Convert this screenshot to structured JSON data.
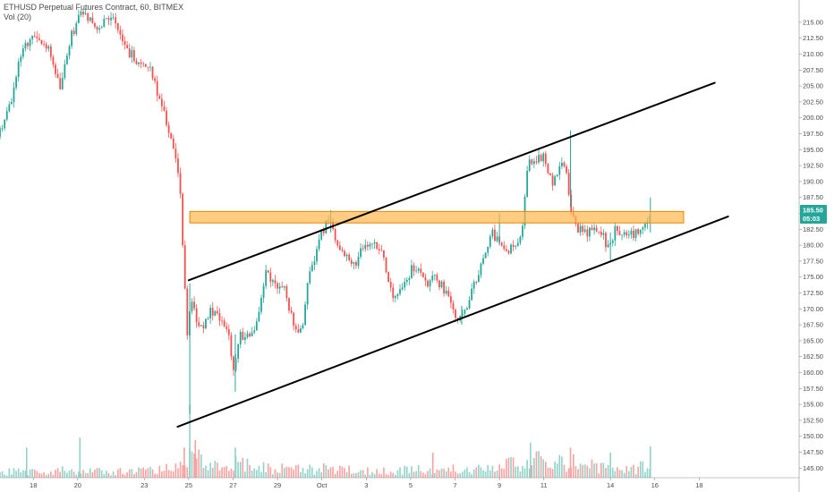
{
  "legend": {
    "title": "ETHUSD Perpetual Futures Contract, 60, BITMEX",
    "volume": "Vol (20)"
  },
  "price_tag": {
    "price": "185.50",
    "countdown": "05:03"
  },
  "colors": {
    "up": "#26a69a",
    "down": "#ef5350",
    "vol_up": "#93d2c9",
    "vol_down": "#f5a3a1",
    "zone_fill": "#ffb74d",
    "zone_stroke": "#e08a00",
    "channel": "#000000",
    "tag": "#26a69a",
    "axis": "#8a8a8a",
    "background": "#ffffff"
  },
  "chart_data": {
    "type": "candlestick",
    "title": "ETHUSD Perpetual Futures Contract, 60, BITMEX",
    "y_range": [
      143.5,
      218.5
    ],
    "y_ticks": [
      "145.00",
      "147.50",
      "150.00",
      "152.50",
      "155.00",
      "157.50",
      "160.00",
      "162.50",
      "165.00",
      "167.50",
      "170.00",
      "172.50",
      "175.00",
      "177.50",
      "180.00",
      "182.50",
      "185.00",
      "187.50",
      "190.00",
      "192.50",
      "195.00",
      "197.50",
      "200.00",
      "202.50",
      "205.00",
      "207.50",
      "210.00",
      "212.50",
      "215.00"
    ],
    "x_range": [
      -1.5,
      34.5
    ],
    "x_ticks": [
      {
        "label": "18",
        "day": 0
      },
      {
        "label": "20",
        "day": 2
      },
      {
        "label": "23",
        "day": 5
      },
      {
        "label": "25",
        "day": 7
      },
      {
        "label": "27",
        "day": 9
      },
      {
        "label": "29",
        "day": 11
      },
      {
        "label": "Oct",
        "day": 13
      },
      {
        "label": "3",
        "day": 15
      },
      {
        "label": "5",
        "day": 17
      },
      {
        "label": "7",
        "day": 19
      },
      {
        "label": "9",
        "day": 21
      },
      {
        "label": "11",
        "day": 23
      },
      {
        "label": "14",
        "day": 26
      },
      {
        "label": "16",
        "day": 28
      },
      {
        "label": "18",
        "day": 30
      }
    ],
    "price_path": [
      [
        -1.5,
        197.0
      ],
      [
        -0.9,
        202.0
      ],
      [
        -0.4,
        211.0
      ],
      [
        0.2,
        213.5
      ],
      [
        0.8,
        211.0
      ],
      [
        1.3,
        205.0
      ],
      [
        1.8,
        213.0
      ],
      [
        2.3,
        216.5
      ],
      [
        3.0,
        214.0
      ],
      [
        3.7,
        216.5
      ],
      [
        4.2,
        211.0
      ],
      [
        4.8,
        209.0
      ],
      [
        5.3,
        208.0
      ],
      [
        5.7,
        204.0
      ],
      [
        6.0,
        200.5
      ],
      [
        6.4,
        195.0
      ],
      [
        6.7,
        190.0
      ],
      [
        6.9,
        175.0
      ],
      [
        7.05,
        165.0
      ],
      [
        7.2,
        172.5
      ],
      [
        7.6,
        166.5
      ],
      [
        8.1,
        169.5
      ],
      [
        8.6,
        168.0
      ],
      [
        8.9,
        166.0
      ],
      [
        9.1,
        160.0
      ],
      [
        9.4,
        166.0
      ],
      [
        9.9,
        165.5
      ],
      [
        10.3,
        170.0
      ],
      [
        10.6,
        176.0
      ],
      [
        11.0,
        174.0
      ],
      [
        11.4,
        173.0
      ],
      [
        11.8,
        168.0
      ],
      [
        12.2,
        166.5
      ],
      [
        12.5,
        175.0
      ],
      [
        12.8,
        178.0
      ],
      [
        13.1,
        182.0
      ],
      [
        13.4,
        184.0
      ],
      [
        13.8,
        180.0
      ],
      [
        14.2,
        178.5
      ],
      [
        14.6,
        177.0
      ],
      [
        15.0,
        180.0
      ],
      [
        15.4,
        181.0
      ],
      [
        15.9,
        178.0
      ],
      [
        16.3,
        172.0
      ],
      [
        16.8,
        174.0
      ],
      [
        17.3,
        177.0
      ],
      [
        17.8,
        174.0
      ],
      [
        18.2,
        175.0
      ],
      [
        18.6,
        173.0
      ],
      [
        19.0,
        170.0
      ],
      [
        19.3,
        168.5
      ],
      [
        19.7,
        171.0
      ],
      [
        20.1,
        175.0
      ],
      [
        20.4,
        178.0
      ],
      [
        20.7,
        182.0
      ],
      [
        21.0,
        181.0
      ],
      [
        21.4,
        179.0
      ],
      [
        21.8,
        180.5
      ],
      [
        22.1,
        181.5
      ],
      [
        22.4,
        193.0
      ],
      [
        22.7,
        193.5
      ],
      [
        23.1,
        194.0
      ],
      [
        23.5,
        189.0
      ],
      [
        23.8,
        192.0
      ],
      [
        24.1,
        193.0
      ],
      [
        24.3,
        185.0
      ],
      [
        24.6,
        183.0
      ],
      [
        24.9,
        181.5
      ],
      [
        25.3,
        183.0
      ],
      [
        25.7,
        182.0
      ],
      [
        26.0,
        179.5
      ],
      [
        26.4,
        183.0
      ],
      [
        26.8,
        181.0
      ],
      [
        27.2,
        182.0
      ],
      [
        27.5,
        182.5
      ],
      [
        27.8,
        184.0
      ]
    ],
    "spikes": [
      {
        "day": 7.05,
        "low": 153.5,
        "high": 174.0
      },
      {
        "day": 9.1,
        "low": 157.0,
        "high": 166.0
      },
      {
        "day": 13.4,
        "low": 182.0,
        "high": 185.5
      },
      {
        "day": 19.3,
        "low": 167.5,
        "high": 170.5
      },
      {
        "day": 21.0,
        "low": 180.0,
        "high": 185.0
      },
      {
        "day": 24.2,
        "low": 186.0,
        "high": 198.0
      },
      {
        "day": 26.0,
        "low": 177.5,
        "high": 182.0
      },
      {
        "day": 27.8,
        "low": 182.0,
        "high": 187.5
      }
    ],
    "volume_max": 3000,
    "volume_profile": [
      [
        -1.5,
        260
      ],
      [
        0.0,
        300
      ],
      [
        1.5,
        350
      ],
      [
        3.0,
        280
      ],
      [
        5.0,
        320
      ],
      [
        6.5,
        420
      ],
      [
        7.0,
        1100
      ],
      [
        8.0,
        520
      ],
      [
        9.0,
        650
      ],
      [
        10.5,
        430
      ],
      [
        12.0,
        380
      ],
      [
        13.5,
        420
      ],
      [
        15.0,
        330
      ],
      [
        17.0,
        360
      ],
      [
        19.0,
        380
      ],
      [
        20.5,
        420
      ],
      [
        22.4,
        900
      ],
      [
        23.5,
        650
      ],
      [
        24.2,
        800
      ],
      [
        25.5,
        500
      ],
      [
        27.0,
        420
      ],
      [
        27.8,
        600
      ]
    ],
    "volume_spikes": [
      {
        "day": -0.3,
        "value": 1200,
        "dir": "up"
      },
      {
        "day": 2.1,
        "value": 1600,
        "dir": "up"
      },
      {
        "day": 6.8,
        "value": 1200,
        "dir": "down"
      },
      {
        "day": 7.05,
        "value": 2900,
        "dir": "up"
      },
      {
        "day": 7.3,
        "value": 1500,
        "dir": "down"
      },
      {
        "day": 9.1,
        "value": 1200,
        "dir": "up"
      },
      {
        "day": 18.0,
        "value": 1000,
        "dir": "down"
      },
      {
        "day": 22.4,
        "value": 1400,
        "dir": "up"
      },
      {
        "day": 24.2,
        "value": 1200,
        "dir": "down"
      },
      {
        "day": 26.0,
        "value": 1000,
        "dir": "up"
      },
      {
        "day": 27.8,
        "value": 1250,
        "dir": "up"
      }
    ],
    "resistance_zone": {
      "day_start": 7.05,
      "day_end": 29.3,
      "price_low": 183.5,
      "price_high": 185.3
    },
    "channel_lines": [
      {
        "name": "upper",
        "from": [
          7.0,
          174.5
        ],
        "to": [
          30.7,
          205.5
        ]
      },
      {
        "name": "lower",
        "from": [
          6.5,
          151.5
        ],
        "to": [
          31.3,
          184.5
        ]
      }
    ],
    "last_price": 185.5,
    "grid": false
  }
}
